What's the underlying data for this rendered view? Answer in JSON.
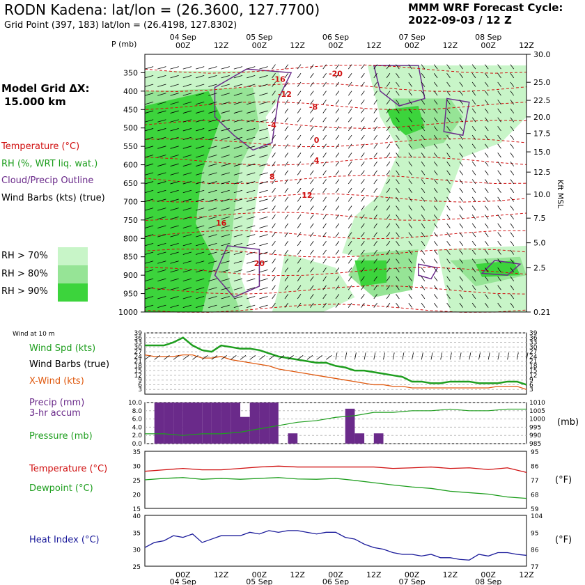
{
  "header": {
    "title": "RODN Kadena:  lat/lon = (26.3600, 127.7700)",
    "subtitle": "Grid Point (397, 183)  lat/lon = (26.4198, 127.8302)",
    "cycle_line1": "MMM WRF Forecast Cycle:",
    "cycle_line2": "2022-09-03 / 12  Z",
    "grid_line1": "Model Grid ΔX:",
    "grid_line2": "15.000 km"
  },
  "legend": {
    "temperature": "Temperature (°C)",
    "rh": "RH (%, WRT liq. wat.)",
    "cloud": "Cloud/Precip Outline",
    "barbs": "Wind Barbs (kts) (true)",
    "rh70": "RH > 70%",
    "rh80": "RH > 80%",
    "rh90": "RH > 90%"
  },
  "colors": {
    "rh70": "#c8f5c8",
    "rh80": "#96e496",
    "rh90": "#3cd43c",
    "temperature": "#d01010",
    "rh_text": "#1e9e1e",
    "cloud": "#6a2a8a",
    "xwind": "#e05a10",
    "heat_index": "#1a1a9a"
  },
  "panel_labels": {
    "wind_at_10m": "Wind at 10 m",
    "wind_speed": "Wind Spd (kts)",
    "wind_barbs": "Wind Barbs (true)",
    "xwind": "X-Wind (kts)",
    "precip1": "Precip (mm)",
    "precip2": "3-hr accum",
    "pressure": "Pressure (mb)",
    "temperature": "Temperature (°C)",
    "dewpoint": "Dewpoint (°C)",
    "heat_index": "Heat Index (°C)",
    "unit_kft": "Kft MSL",
    "unit_mb": "(mb)",
    "unit_f1": "(°F)",
    "unit_f2": "(°F)"
  },
  "chart_data": [
    {
      "type": "heatmap",
      "x_ticks": [
        "00Z",
        "12Z",
        "00Z",
        "12Z",
        "00Z",
        "12Z",
        "00Z",
        "12Z",
        "00Z",
        "12Z"
      ],
      "x_ticks_hours": [
        12,
        24,
        36,
        48,
        60,
        72,
        84,
        96,
        108,
        120
      ],
      "date_labels": [
        "04 Sep",
        "05 Sep",
        "06 Sep",
        "07 Sep",
        "08 Sep"
      ],
      "date_hours": [
        12,
        36,
        60,
        84,
        108
      ],
      "xlim": [
        0,
        120
      ],
      "p_label": "P (mb)",
      "p_ticks": [
        350,
        400,
        450,
        500,
        550,
        600,
        650,
        700,
        750,
        800,
        850,
        900,
        950,
        1000
      ],
      "kft_ticks": [
        "30.0",
        "25.0",
        "22.5",
        "20.0",
        "17.5",
        "15.0",
        "12.5",
        "10.0",
        "7.5",
        "5.0",
        "2.5",
        "0.21"
      ],
      "kft_tick_pressures": [
        300,
        376,
        425,
        470,
        515,
        565,
        620,
        680,
        745,
        812,
        880,
        1000
      ],
      "ylim": [
        300,
        1000
      ],
      "temperature_labels": [
        {
          "text": "-20",
          "hour": 60,
          "p": 360
        },
        {
          "text": "-16",
          "hour": 42,
          "p": 375
        },
        {
          "text": "-12",
          "hour": 44,
          "p": 415
        },
        {
          "text": "-8",
          "hour": 53,
          "p": 450
        },
        {
          "text": "-4",
          "hour": 40,
          "p": 500
        },
        {
          "text": "0",
          "hour": 54,
          "p": 540
        },
        {
          "text": "4",
          "hour": 54,
          "p": 595
        },
        {
          "text": "8",
          "hour": 40,
          "p": 640
        },
        {
          "text": "12",
          "hour": 51,
          "p": 690
        },
        {
          "text": "16",
          "hour": 24,
          "p": 765
        },
        {
          "text": "20",
          "hour": 36,
          "p": 875
        }
      ]
    },
    {
      "type": "line",
      "title": "Wind at 10 m",
      "x_hours": [
        0,
        3,
        6,
        9,
        12,
        15,
        18,
        21,
        24,
        27,
        30,
        33,
        36,
        39,
        42,
        45,
        48,
        51,
        54,
        57,
        60,
        63,
        66,
        69,
        72,
        75,
        78,
        81,
        84,
        87,
        90,
        93,
        96,
        99,
        102,
        105,
        108,
        111,
        114,
        117,
        120
      ],
      "series": [
        {
          "name": "Wind Spd (kts)",
          "color": "#1e9e1e",
          "values": [
            31,
            31,
            31,
            33,
            36,
            31,
            28,
            27,
            31,
            30,
            29,
            29,
            28,
            26,
            24,
            23,
            22,
            21,
            20,
            20,
            18,
            17,
            15,
            15,
            14,
            13,
            12,
            11,
            8,
            8,
            7,
            7,
            8,
            8,
            8,
            7,
            7,
            7,
            8,
            8,
            6
          ]
        },
        {
          "name": "X-Wind (kts)",
          "color": "#e05a10",
          "values": [
            25,
            24,
            24,
            24,
            25,
            25,
            23,
            23,
            24,
            22,
            21,
            20,
            19,
            18,
            16,
            15,
            14,
            13,
            12,
            11,
            10,
            9,
            8,
            7,
            6,
            6,
            5,
            5,
            4,
            4,
            4,
            4,
            4,
            4,
            4,
            4,
            4,
            5,
            5,
            5,
            3
          ]
        }
      ],
      "yticks_left": [
        3,
        6,
        9,
        12,
        15,
        18,
        21,
        24,
        27,
        30,
        33,
        36,
        39
      ],
      "ylim": [
        0,
        39
      ]
    },
    {
      "type": "bar",
      "title": "Precip (mm) 3-hr accum",
      "x_hours_start": [
        0,
        3,
        6,
        9,
        12,
        15,
        18,
        21,
        24,
        27,
        30,
        33,
        36,
        39,
        42,
        45,
        48,
        51,
        54,
        57,
        60,
        63,
        66,
        69,
        72,
        75,
        78,
        81,
        84,
        87,
        90,
        93,
        96,
        99,
        102,
        105,
        108,
        111,
        114,
        117
      ],
      "values": [
        0,
        10,
        10,
        10,
        10,
        10,
        10,
        10,
        10,
        10,
        6.5,
        10,
        10,
        10,
        0,
        2.5,
        0,
        0,
        0,
        0,
        0,
        8.5,
        2.5,
        0,
        2.5,
        0,
        0,
        0,
        0,
        0,
        0,
        0,
        0,
        0,
        0,
        0,
        0,
        0,
        0,
        0
      ],
      "ylim": [
        0,
        10
      ],
      "yticks": [
        "0.0",
        "2.0",
        "4.0",
        "6.0",
        "8.0",
        "10.0"
      ],
      "pressure": {
        "name": "Pressure (mb)",
        "x_hours": [
          0,
          6,
          12,
          18,
          24,
          30,
          36,
          42,
          48,
          54,
          60,
          66,
          72,
          78,
          84,
          90,
          96,
          102,
          108,
          114,
          120
        ],
        "values": [
          991,
          991,
          990,
          991,
          991,
          992,
          994,
          996,
          998,
          999,
          1001,
          1002,
          1004,
          1004,
          1005,
          1005,
          1006,
          1005,
          1005,
          1006,
          1006
        ],
        "yticks": [
          985,
          990,
          995,
          1000,
          1005,
          1010
        ],
        "ylim": [
          985,
          1010
        ]
      }
    },
    {
      "type": "line",
      "title": "Temperature / Dewpoint",
      "x_hours": [
        0,
        6,
        12,
        18,
        24,
        30,
        36,
        42,
        48,
        54,
        60,
        66,
        72,
        78,
        84,
        90,
        96,
        102,
        108,
        114,
        120
      ],
      "series": [
        {
          "name": "Temperature (°C)",
          "color": "#d01010",
          "values": [
            28,
            28.5,
            29,
            28.5,
            28.5,
            29,
            29.5,
            29.8,
            29.5,
            29.5,
            29.5,
            29.5,
            29.5,
            29,
            29.2,
            29.5,
            29,
            29.2,
            28.6,
            29.2,
            27.6
          ]
        },
        {
          "name": "Dewpoint (°C)",
          "color": "#1e9e1e",
          "values": [
            25,
            25.5,
            25.8,
            25.2,
            25.5,
            25.2,
            25.5,
            25.8,
            25.3,
            25.2,
            25.5,
            24.8,
            24,
            23.2,
            22.5,
            22,
            21,
            20.5,
            20,
            19,
            18.5
          ]
        }
      ],
      "yticks_c": [
        15,
        20,
        25,
        30,
        35
      ],
      "yticks_f": [
        59,
        68,
        77,
        86,
        95
      ],
      "ylim": [
        15,
        35
      ]
    },
    {
      "type": "line",
      "title": "Heat Index (°C)",
      "x_hours": [
        0,
        3,
        6,
        9,
        12,
        15,
        18,
        21,
        24,
        27,
        30,
        33,
        36,
        39,
        42,
        45,
        48,
        51,
        54,
        57,
        60,
        63,
        66,
        69,
        72,
        75,
        78,
        81,
        84,
        87,
        90,
        93,
        96,
        99,
        102,
        105,
        108,
        111,
        114,
        117,
        120
      ],
      "series": [
        {
          "name": "Heat Index (°C)",
          "color": "#1a1a9a",
          "values": [
            30.5,
            32,
            32.5,
            34,
            33.5,
            34.5,
            32,
            33,
            34,
            34,
            34,
            35,
            34.5,
            35.5,
            35,
            35.5,
            35.5,
            35,
            34.5,
            35,
            35,
            33.5,
            33,
            31.5,
            30.5,
            30,
            29,
            28.5,
            28.5,
            28,
            28.5,
            27.5,
            27.5,
            27,
            26.8,
            28.5,
            28,
            29,
            29,
            28.5,
            28.2
          ]
        }
      ],
      "yticks_c": [
        25,
        30,
        35,
        40
      ],
      "yticks_f": [
        77,
        86,
        95,
        104
      ],
      "ylim": [
        25,
        40
      ]
    }
  ]
}
